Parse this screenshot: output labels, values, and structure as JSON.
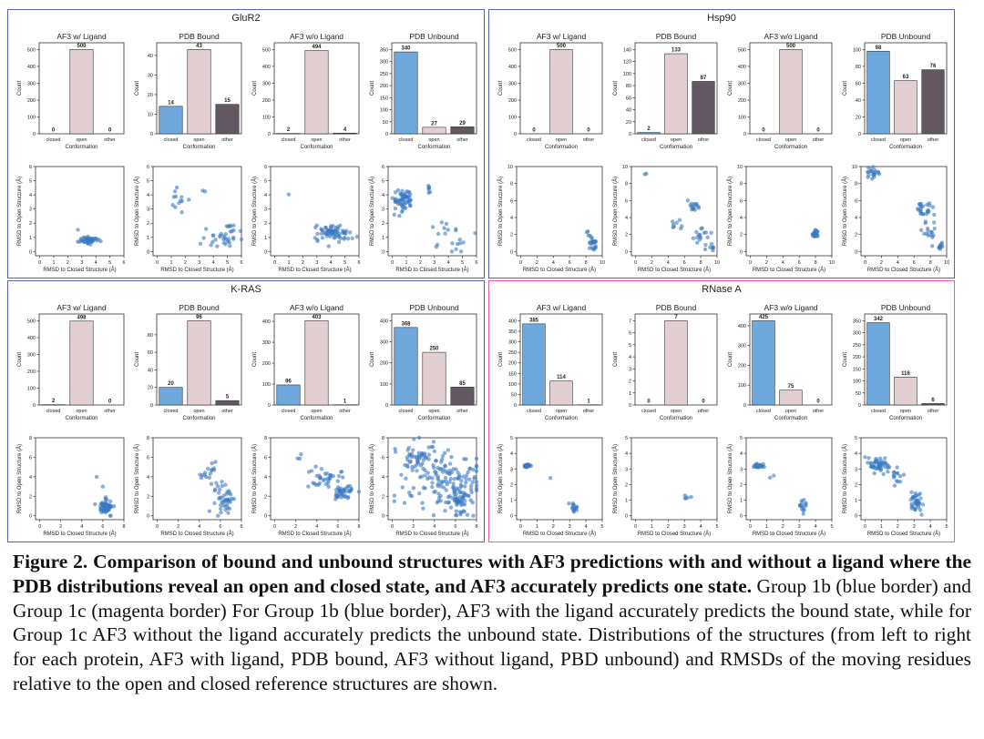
{
  "colors": {
    "closed": "#6fa8dc",
    "open": "#e2cfd2",
    "other": "#615862",
    "scatter": "#3b79c2",
    "group_1b_border": "#5a63b3",
    "group_1c_border": "#e060b4"
  },
  "bar_common": {
    "categories": [
      "closed",
      "open",
      "other"
    ],
    "xlabel": "Conformation",
    "ylabel": "Count"
  },
  "scatter_common": {
    "xlabel": "RMSD to Closed Structure (Å)",
    "ylabel": "RMSD to Open Structure (Å)"
  },
  "chart_data": [
    {
      "protein": "GluR2",
      "group": "1b",
      "bars": [
        {
          "type": "bar",
          "title": "AF3 w/ Ligand",
          "values": [
            0,
            500,
            0
          ],
          "yticks": [
            0,
            100,
            200,
            300,
            400,
            500
          ]
        },
        {
          "type": "bar",
          "title": "PDB Bound",
          "values": [
            14,
            43,
            15
          ],
          "yticks": [
            0,
            10,
            20,
            30,
            40
          ]
        },
        {
          "type": "bar",
          "title": "AF3 w/o Ligand",
          "values": [
            2,
            494,
            4
          ],
          "yticks": [
            0,
            100,
            200,
            300,
            400,
            500
          ]
        },
        {
          "type": "bar",
          "title": "PDB Unbound",
          "values": [
            340,
            27,
            29
          ],
          "yticks": [
            0,
            50,
            100,
            150,
            200,
            250,
            300,
            350
          ]
        }
      ],
      "scatters": [
        {
          "type": "scatter",
          "xticks": [
            0,
            1,
            2,
            3,
            4,
            5,
            6
          ],
          "yticks": [
            0,
            1,
            2,
            3,
            4,
            5,
            6
          ],
          "clusters": [
            {
              "x": 3.5,
              "y": 0.8,
              "sx": 0.3,
              "sy": 0.12,
              "n": 60
            },
            {
              "x": 2.8,
              "y": 1.5,
              "sx": 0.05,
              "sy": 0.05,
              "n": 1
            }
          ]
        },
        {
          "type": "scatter",
          "xticks": [
            0,
            1,
            2,
            3,
            4,
            5,
            6
          ],
          "yticks": [
            0,
            1,
            2,
            3,
            4,
            5,
            6
          ],
          "clusters": [
            {
              "x": 1.5,
              "y": 3.4,
              "sx": 0.3,
              "sy": 0.5,
              "n": 12
            },
            {
              "x": 4.5,
              "y": 1.1,
              "sx": 0.8,
              "sy": 0.4,
              "n": 25
            },
            {
              "x": 5.3,
              "y": 1.8,
              "sx": 0.4,
              "sy": 0.3,
              "n": 10
            },
            {
              "x": 3.3,
              "y": 4.3,
              "sx": 0.1,
              "sy": 0.1,
              "n": 2
            }
          ]
        },
        {
          "type": "scatter",
          "xticks": [
            0,
            1,
            2,
            3,
            4,
            5,
            6
          ],
          "yticks": [
            0,
            1,
            2,
            3,
            4,
            5,
            6
          ],
          "clusters": [
            {
              "x": 4.2,
              "y": 1.3,
              "sx": 0.6,
              "sy": 0.3,
              "n": 70
            },
            {
              "x": 1.0,
              "y": 4.0,
              "sx": 0.05,
              "sy": 0.05,
              "n": 1
            }
          ]
        },
        {
          "type": "scatter",
          "xticks": [
            0,
            1,
            2,
            3,
            4,
            5,
            6
          ],
          "yticks": [
            0,
            1,
            2,
            3,
            4,
            5,
            6
          ],
          "clusters": [
            {
              "x": 0.8,
              "y": 3.6,
              "sx": 0.35,
              "sy": 0.35,
              "n": 60
            },
            {
              "x": 2.6,
              "y": 4.5,
              "sx": 0.05,
              "sy": 0.2,
              "n": 6
            },
            {
              "x": 4.0,
              "y": 1.0,
              "sx": 0.7,
              "sy": 0.7,
              "n": 20
            }
          ]
        }
      ]
    },
    {
      "protein": "Hsp90",
      "group": "1b",
      "bars": [
        {
          "type": "bar",
          "title": "AF3 w/ Ligand",
          "values": [
            0,
            500,
            0
          ],
          "yticks": [
            0,
            100,
            200,
            300,
            400,
            500
          ]
        },
        {
          "type": "bar",
          "title": "PDB Bound",
          "values": [
            2,
            133,
            87
          ],
          "yticks": [
            0,
            20,
            40,
            60,
            80,
            100,
            120,
            140
          ]
        },
        {
          "type": "bar",
          "title": "AF3 w/o Ligand",
          "values": [
            0,
            500,
            0
          ],
          "yticks": [
            0,
            100,
            200,
            300,
            400,
            500
          ]
        },
        {
          "type": "bar",
          "title": "PDB Unbound",
          "values": [
            98,
            63,
            76
          ],
          "yticks": [
            0,
            20,
            40,
            60,
            80,
            100
          ]
        }
      ],
      "scatters": [
        {
          "type": "scatter",
          "xticks": [
            0,
            2,
            4,
            6,
            8,
            10
          ],
          "yticks": [
            0,
            2,
            4,
            6,
            8,
            10
          ],
          "clusters": [
            {
              "x": 8.8,
              "y": 0.8,
              "sx": 0.25,
              "sy": 0.5,
              "n": 25
            },
            {
              "x": 8.2,
              "y": 2.2,
              "sx": 0.1,
              "sy": 0.2,
              "n": 3
            }
          ]
        },
        {
          "type": "scatter",
          "xticks": [
            0,
            2,
            4,
            6,
            8,
            10
          ],
          "yticks": [
            0,
            2,
            4,
            6,
            8,
            10
          ],
          "clusters": [
            {
              "x": 7.0,
              "y": 5.3,
              "sx": 0.5,
              "sy": 0.3,
              "n": 15
            },
            {
              "x": 8.0,
              "y": 2.0,
              "sx": 0.6,
              "sy": 0.5,
              "n": 15
            },
            {
              "x": 9.0,
              "y": 0.5,
              "sx": 0.3,
              "sy": 0.2,
              "n": 8
            },
            {
              "x": 5.2,
              "y": 3.0,
              "sx": 0.4,
              "sy": 0.3,
              "n": 8
            },
            {
              "x": 1.2,
              "y": 9.2,
              "sx": 0.2,
              "sy": 0.1,
              "n": 2
            }
          ]
        },
        {
          "type": "scatter",
          "xticks": [
            0,
            2,
            4,
            6,
            8,
            10
          ],
          "yticks": [
            0,
            2,
            4,
            6,
            8,
            10
          ],
          "clusters": [
            {
              "x": 8.0,
              "y": 2.0,
              "sx": 0.2,
              "sy": 0.3,
              "n": 25
            }
          ]
        },
        {
          "type": "scatter",
          "xticks": [
            0,
            2,
            4,
            6,
            8,
            10
          ],
          "yticks": [
            0,
            2,
            4,
            6,
            8,
            10
          ],
          "clusters": [
            {
              "x": 0.8,
              "y": 9.2,
              "sx": 0.4,
              "sy": 0.3,
              "n": 20
            },
            {
              "x": 7.0,
              "y": 5.2,
              "sx": 0.6,
              "sy": 0.5,
              "n": 25
            },
            {
              "x": 8.0,
              "y": 2.5,
              "sx": 0.5,
              "sy": 0.6,
              "n": 15
            },
            {
              "x": 9.2,
              "y": 0.6,
              "sx": 0.25,
              "sy": 0.2,
              "n": 12
            }
          ]
        }
      ]
    },
    {
      "protein": "K-RAS",
      "group": "1b",
      "bars": [
        {
          "type": "bar",
          "title": "AF3 w/ Ligand",
          "values": [
            2,
            498,
            0
          ],
          "yticks": [
            0,
            100,
            200,
            300,
            400,
            500
          ]
        },
        {
          "type": "bar",
          "title": "PDB Bound",
          "values": [
            20,
            96,
            5
          ],
          "yticks": [
            0,
            20,
            40,
            60,
            80
          ]
        },
        {
          "type": "bar",
          "title": "AF3 w/o Ligand",
          "values": [
            96,
            403,
            1
          ],
          "yticks": [
            0,
            100,
            200,
            300,
            400
          ]
        },
        {
          "type": "bar",
          "title": "PDB Unbound",
          "values": [
            368,
            250,
            85
          ],
          "yticks": [
            0,
            100,
            200,
            300,
            400
          ]
        }
      ],
      "scatters": [
        {
          "type": "scatter",
          "xticks": [
            0,
            2,
            4,
            6,
            8
          ],
          "yticks": [
            0,
            2,
            4,
            6,
            8
          ],
          "clusters": [
            {
              "x": 6.3,
              "y": 0.9,
              "sx": 0.3,
              "sy": 0.4,
              "n": 60
            },
            {
              "x": 5.4,
              "y": 3.8,
              "sx": 0.1,
              "sy": 0.1,
              "n": 1
            },
            {
              "x": 5.9,
              "y": 3.0,
              "sx": 0.1,
              "sy": 0.1,
              "n": 1
            }
          ]
        },
        {
          "type": "scatter",
          "xticks": [
            0,
            2,
            4,
            6,
            8
          ],
          "yticks": [
            0,
            2,
            4,
            6,
            8
          ],
          "clusters": [
            {
              "x": 4.8,
              "y": 4.5,
              "sx": 0.4,
              "sy": 0.4,
              "n": 15
            },
            {
              "x": 6.2,
              "y": 2.0,
              "sx": 0.5,
              "sy": 1.0,
              "n": 45
            }
          ]
        },
        {
          "type": "scatter",
          "xticks": [
            0,
            2,
            4,
            6,
            8
          ],
          "yticks": [
            0,
            2,
            4,
            6,
            8
          ],
          "clusters": [
            {
              "x": 4.8,
              "y": 4.0,
              "sx": 0.8,
              "sy": 0.5,
              "n": 35
            },
            {
              "x": 6.5,
              "y": 2.5,
              "sx": 0.5,
              "sy": 0.4,
              "n": 40
            },
            {
              "x": 2.5,
              "y": 6.0,
              "sx": 0.3,
              "sy": 0.3,
              "n": 3
            }
          ]
        },
        {
          "type": "scatter",
          "xticks": [
            0,
            2,
            4,
            6,
            8
          ],
          "yticks": [
            0,
            2,
            4,
            6,
            8
          ],
          "clusters": [
            {
              "x": 2.0,
              "y": 5.8,
              "sx": 1.0,
              "sy": 0.7,
              "n": 40
            },
            {
              "x": 5.0,
              "y": 3.5,
              "sx": 1.8,
              "sy": 1.8,
              "n": 150
            },
            {
              "x": 6.3,
              "y": 1.5,
              "sx": 0.4,
              "sy": 0.8,
              "n": 40
            }
          ]
        }
      ]
    },
    {
      "protein": "RNase A",
      "group": "1c",
      "bars": [
        {
          "type": "bar",
          "title": "AF3 w/ Ligand",
          "values": [
            385,
            114,
            1
          ],
          "yticks": [
            0,
            50,
            100,
            150,
            200,
            250,
            300,
            350,
            400
          ]
        },
        {
          "type": "bar",
          "title": "PDB Bound",
          "values": [
            0,
            7,
            0
          ],
          "yticks": [
            0,
            1,
            2,
            3,
            4,
            5,
            6,
            7
          ]
        },
        {
          "type": "bar",
          "title": "AF3 w/o Ligand",
          "values": [
            425,
            75,
            0
          ],
          "yticks": [
            0,
            100,
            200,
            300,
            400
          ]
        },
        {
          "type": "bar",
          "title": "PDB Unbound",
          "values": [
            342,
            116,
            6
          ],
          "yticks": [
            0,
            50,
            100,
            150,
            200,
            250,
            300,
            350
          ]
        }
      ],
      "scatters": [
        {
          "type": "scatter",
          "xticks": [
            0,
            1,
            2,
            3,
            4,
            5
          ],
          "yticks": [
            0,
            1,
            2,
            3,
            4,
            5
          ],
          "clusters": [
            {
              "x": 0.4,
              "y": 3.2,
              "sx": 0.12,
              "sy": 0.06,
              "n": 20
            },
            {
              "x": 3.3,
              "y": 0.5,
              "sx": 0.12,
              "sy": 0.2,
              "n": 15
            },
            {
              "x": 1.8,
              "y": 2.4,
              "sx": 0.05,
              "sy": 0.05,
              "n": 1
            }
          ]
        },
        {
          "type": "scatter",
          "xticks": [
            0,
            1,
            2,
            3,
            4,
            5
          ],
          "yticks": [
            0,
            1,
            2,
            3,
            4,
            5
          ],
          "clusters": [
            {
              "x": 3.2,
              "y": 1.2,
              "sx": 0.15,
              "sy": 0.2,
              "n": 5
            }
          ]
        },
        {
          "type": "scatter",
          "xticks": [
            0,
            1,
            2,
            3,
            4,
            5
          ],
          "yticks": [
            0,
            1,
            2,
            3,
            4,
            5
          ],
          "clusters": [
            {
              "x": 0.5,
              "y": 3.2,
              "sx": 0.2,
              "sy": 0.07,
              "n": 20
            },
            {
              "x": 3.2,
              "y": 0.6,
              "sx": 0.12,
              "sy": 0.25,
              "n": 15
            },
            {
              "x": 1.3,
              "y": 2.7,
              "sx": 0.1,
              "sy": 0.15,
              "n": 2
            }
          ]
        },
        {
          "type": "scatter",
          "xticks": [
            0,
            1,
            2,
            3,
            4,
            5
          ],
          "yticks": [
            0,
            1,
            2,
            3,
            4,
            5
          ],
          "clusters": [
            {
              "x": 0.8,
              "y": 3.3,
              "sx": 0.35,
              "sy": 0.2,
              "n": 50
            },
            {
              "x": 2.0,
              "y": 2.6,
              "sx": 0.4,
              "sy": 0.25,
              "n": 15
            },
            {
              "x": 3.2,
              "y": 0.8,
              "sx": 0.2,
              "sy": 0.35,
              "n": 35
            }
          ]
        }
      ]
    }
  ],
  "caption": {
    "bold": "Figure 2.  Comparison of bound and unbound structures with AF3 predictions with and without a ligand where the PDB distributions reveal an open and closed state, and AF3 accurately predicts one state.",
    "normal": "  Group 1b (blue border) and Group 1c (magenta border) For Group 1b (blue border), AF3 with the ligand accurately predicts the bound state, while for Group 1c AF3 without the ligand accurately predicts the unbound state. Distributions of the structures (from left to right for each protein, AF3 with ligand, PDB bound, AF3 without ligand, PBD unbound) and RMSDs of the moving residues relative to the open and closed reference structures are shown."
  }
}
